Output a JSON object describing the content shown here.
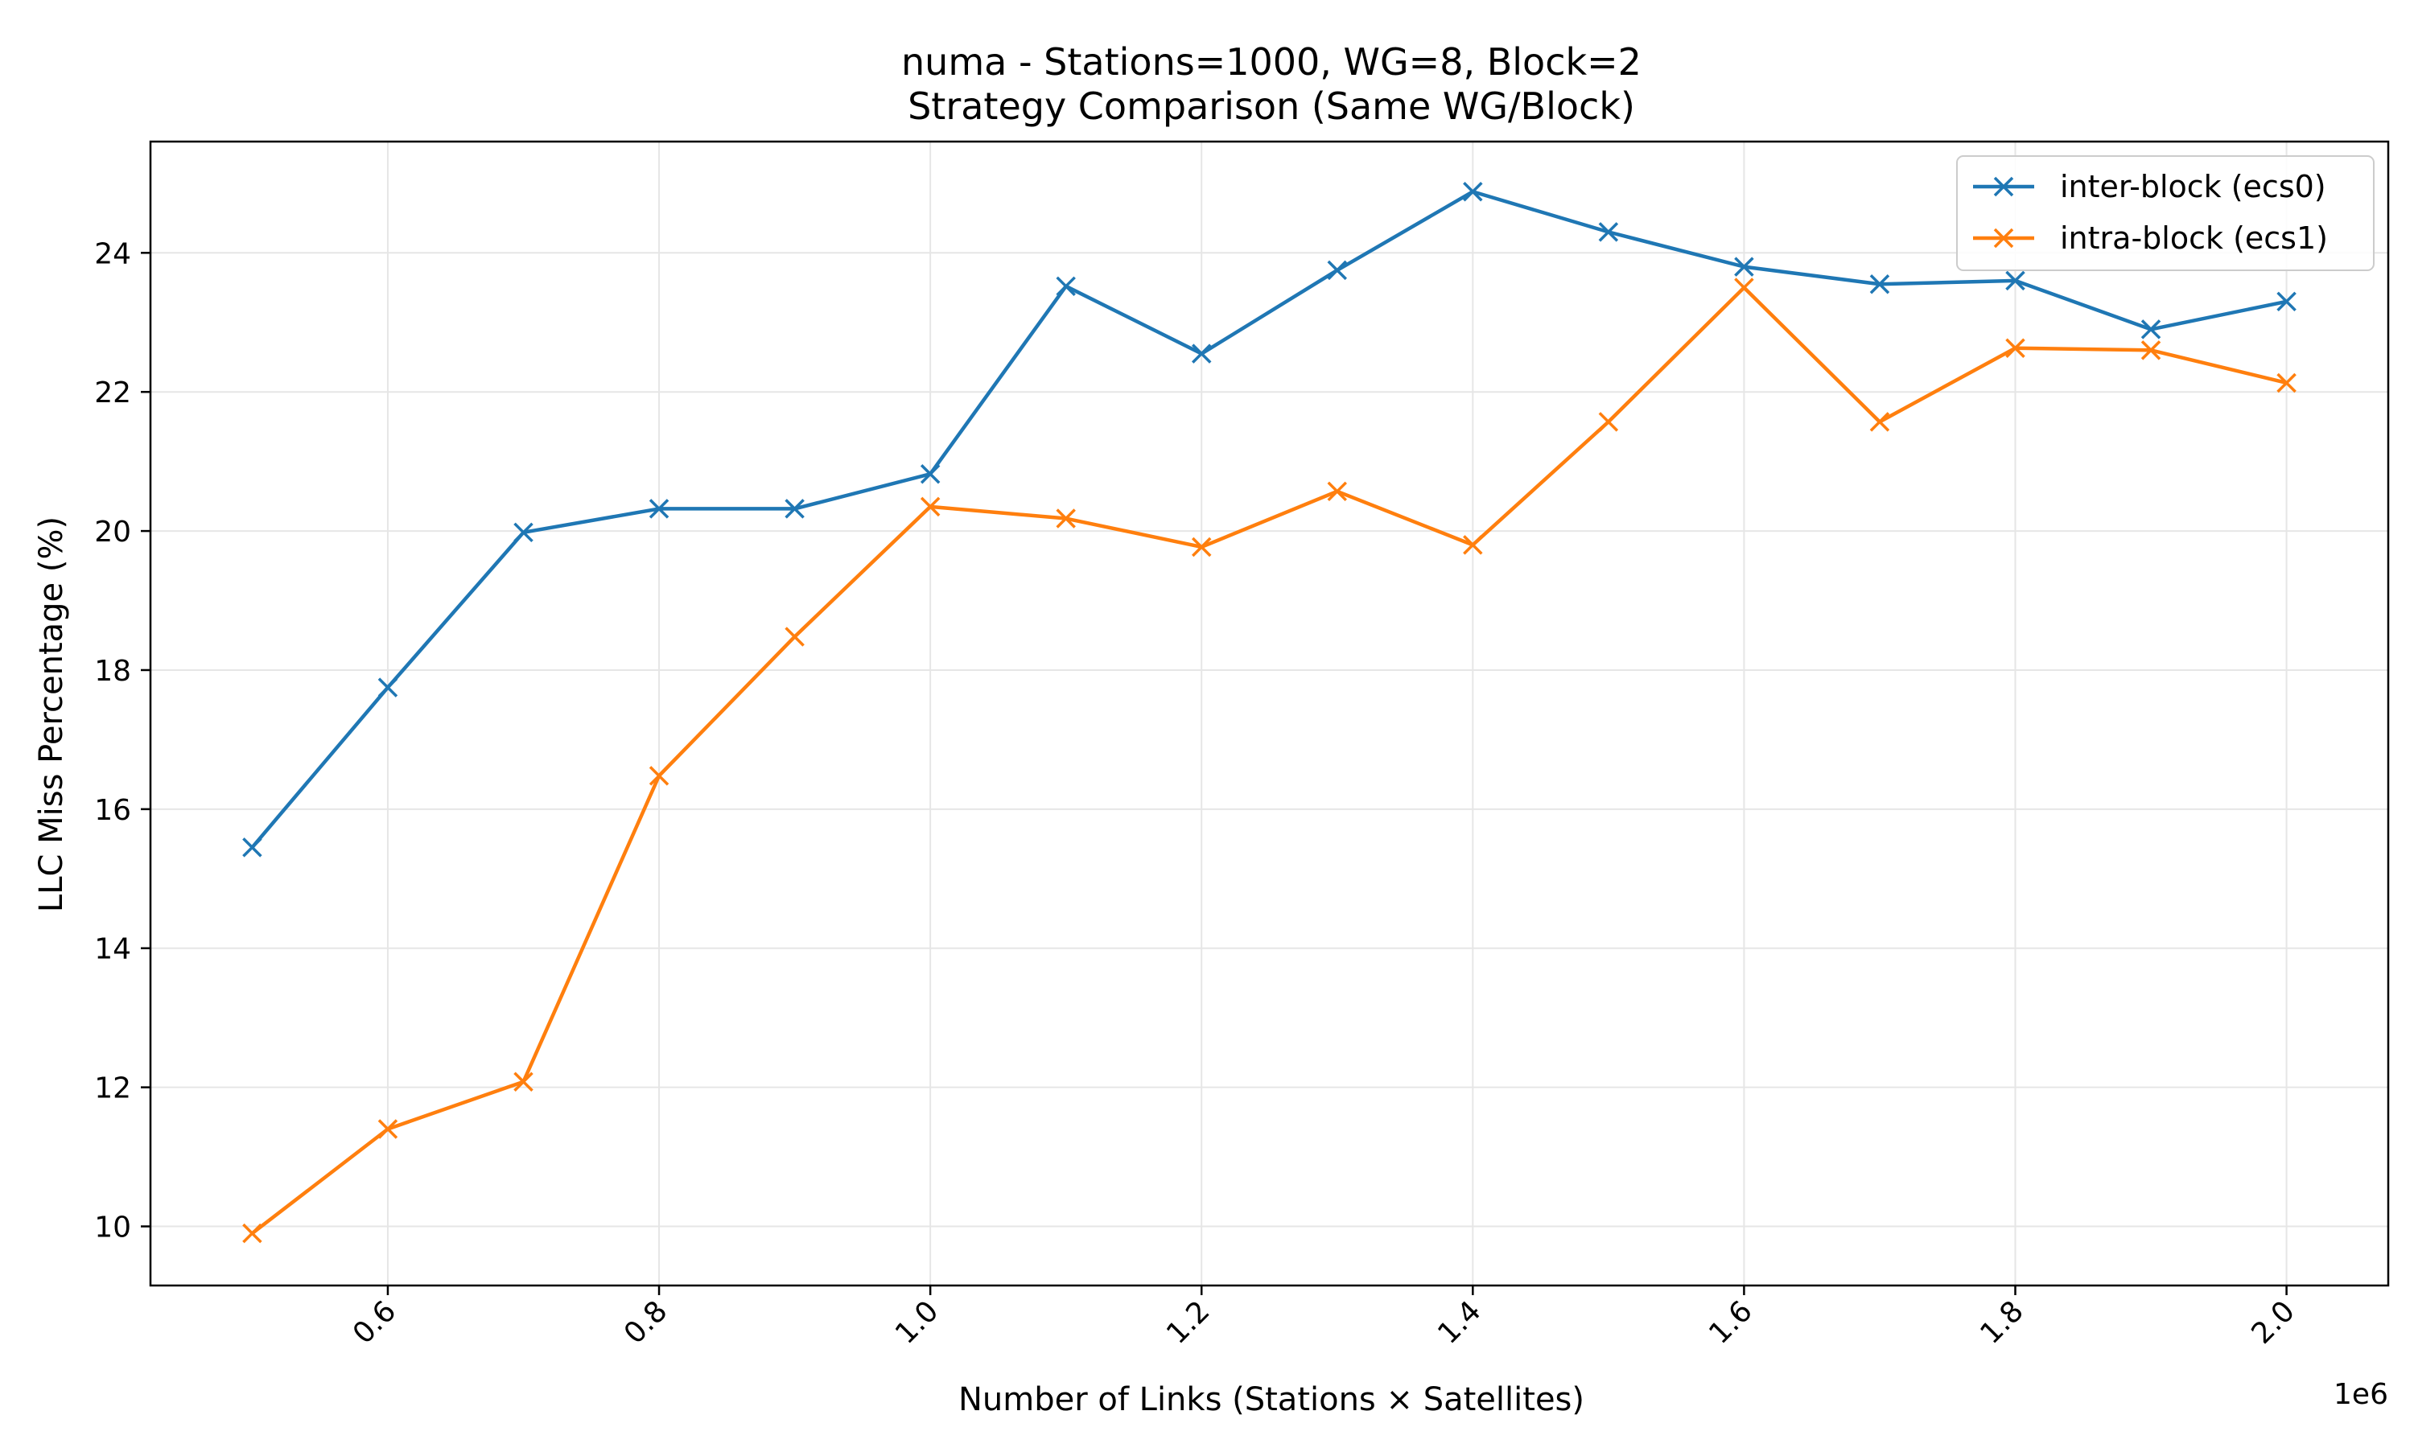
{
  "chart_data": {
    "type": "line",
    "title": "numa - Stations=1000, WG=8, Block=2",
    "subtitle": "Strategy Comparison (Same WG/Block)",
    "xlabel": "Number of Links (Stations × Satellites)",
    "ylabel": "LLC Miss Percentage (%)",
    "x_offset_label": "1e6",
    "x": [
      0.5,
      0.6,
      0.7,
      0.8,
      0.9,
      1.0,
      1.1,
      1.2,
      1.3,
      1.4,
      1.5,
      1.6,
      1.7,
      1.8,
      1.9,
      2.0
    ],
    "xlim": [
      0.425,
      2.075
    ],
    "ylim": [
      9.15,
      25.6
    ],
    "xticks": [
      0.6,
      0.8,
      1.0,
      1.2,
      1.4,
      1.6,
      1.8,
      2.0
    ],
    "xtick_labels": [
      "0.6",
      "0.8",
      "1.0",
      "1.2",
      "1.4",
      "1.6",
      "1.8",
      "2.0"
    ],
    "yticks": [
      10,
      12,
      14,
      16,
      18,
      20,
      22,
      24
    ],
    "ytick_labels": [
      "10",
      "12",
      "14",
      "16",
      "18",
      "20",
      "22",
      "24"
    ],
    "grid": true,
    "legend_position": "top-right",
    "marker": "x",
    "series": [
      {
        "name": "inter-block (ecs0)",
        "color": "#1f77b4",
        "values": [
          15.45,
          17.75,
          19.98,
          20.32,
          20.32,
          20.82,
          23.52,
          22.55,
          23.75,
          24.88,
          24.3,
          23.8,
          23.55,
          23.6,
          22.9,
          23.3
        ]
      },
      {
        "name": "intra-block (ecs1)",
        "color": "#ff7f0e",
        "values": [
          9.9,
          11.4,
          12.08,
          16.48,
          18.48,
          20.35,
          20.18,
          19.77,
          20.57,
          19.8,
          21.57,
          23.5,
          21.57,
          22.63,
          22.6,
          22.13
        ]
      }
    ]
  }
}
